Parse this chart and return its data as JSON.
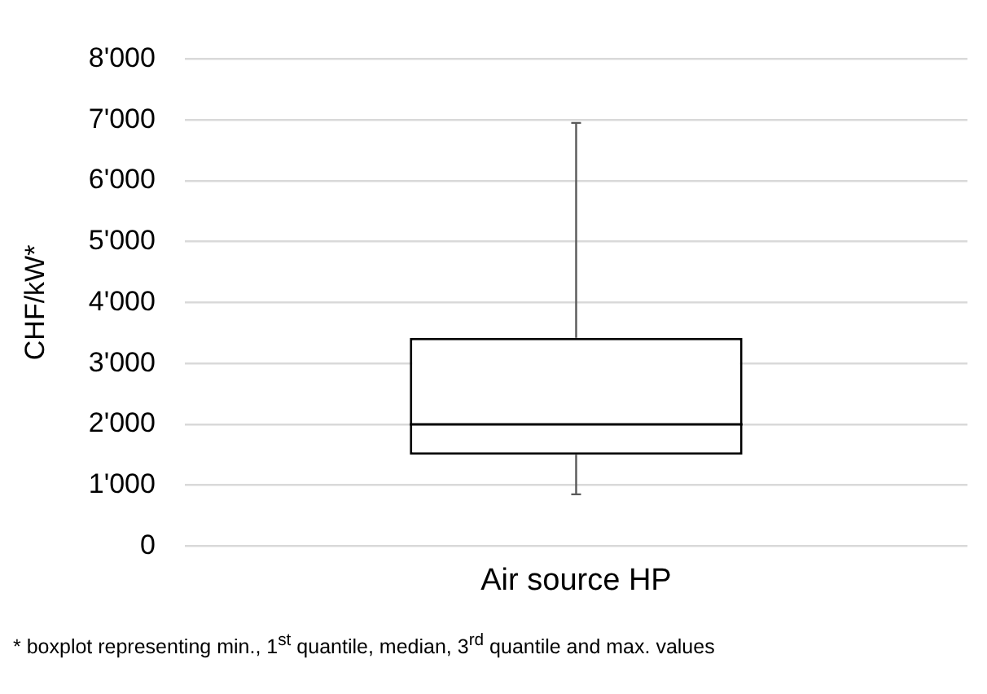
{
  "chart_data": {
    "type": "box",
    "ylabel": "CHF/kW*",
    "categories": [
      "Air source HP"
    ],
    "boxes": [
      {
        "low": 850,
        "q1": 1500,
        "median": 2000,
        "q3": 3420,
        "high": 6950
      }
    ],
    "ylim": [
      0,
      8000
    ],
    "yticks": [
      {
        "value": 0,
        "label": "0"
      },
      {
        "value": 1000,
        "label": "1'000"
      },
      {
        "value": 2000,
        "label": "2'000"
      },
      {
        "value": 3000,
        "label": "3'000"
      },
      {
        "value": 4000,
        "label": "4'000"
      },
      {
        "value": 5000,
        "label": "5'000"
      },
      {
        "value": 6000,
        "label": "6'000"
      },
      {
        "value": 7000,
        "label": "7'000"
      },
      {
        "value": 8000,
        "label": "8'000"
      }
    ],
    "grid": "y",
    "legend": false,
    "annotations": [
      "* boxplot  representing min., 1$^{st}$ quantile, median, 3$^{rd}$ quantile and max. values"
    ]
  }
}
